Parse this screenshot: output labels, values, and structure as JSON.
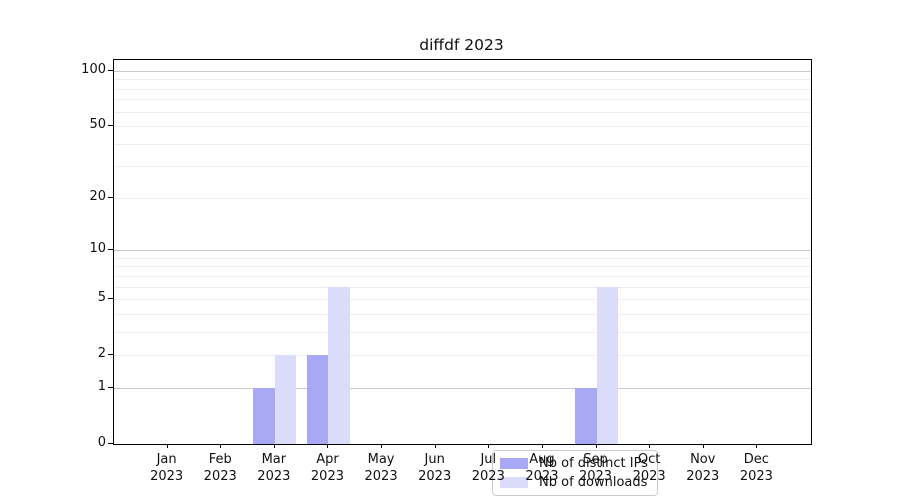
{
  "title": "diffdf 2023",
  "chart_data": {
    "type": "bar",
    "title": "diffdf 2023",
    "yscale": "log1p",
    "ylim": [
      0,
      100
    ],
    "yticks": [
      0,
      1,
      2,
      5,
      10,
      20,
      50,
      100
    ],
    "grid": {
      "major": [
        1,
        10,
        100
      ],
      "minor": [
        2,
        3,
        4,
        5,
        6,
        7,
        8,
        9,
        20,
        30,
        40,
        50,
        60,
        70,
        80,
        90
      ]
    },
    "categories": [
      "Jan",
      "Feb",
      "Mar",
      "Apr",
      "May",
      "Jun",
      "Jul",
      "Aug",
      "Sep",
      "Oct",
      "Nov",
      "Dec"
    ],
    "year": "2023",
    "series": [
      {
        "name": "Nb of distinct IPs",
        "color": "#A8A8F5",
        "values": [
          0,
          0,
          1,
          2,
          0,
          0,
          0,
          0,
          1,
          0,
          0,
          0
        ]
      },
      {
        "name": "Nb of downloads",
        "color": "#DBDBFA",
        "values": [
          0,
          0,
          2,
          6,
          0,
          0,
          0,
          0,
          6,
          0,
          0,
          0
        ]
      }
    ],
    "legend_position": "inside-bottom-center",
    "grid_on": true
  },
  "colors": {
    "background": "#FFFFFF",
    "axis": "#000000",
    "grid_major": "#C8C8C8",
    "grid_minor": "#EDEDED",
    "text": "#111111",
    "legend_border": "#CCCCCC"
  }
}
